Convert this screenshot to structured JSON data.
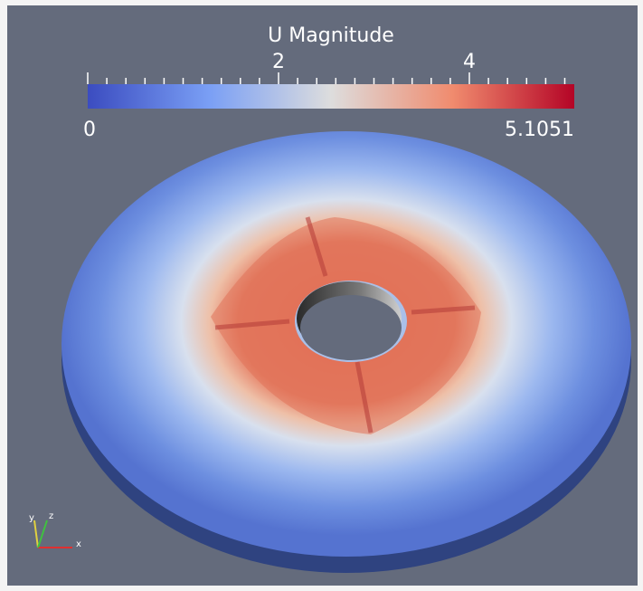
{
  "colorbar": {
    "title": "U Magnitude",
    "tick_labels": [
      "2",
      "4"
    ],
    "min_label": "0",
    "max_label": "5.1051"
  },
  "axes": {
    "x": "x",
    "y": "y",
    "z": "z"
  }
}
